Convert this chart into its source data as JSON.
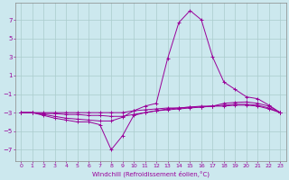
{
  "xlabel": "Windchill (Refroidissement éolien,°C)",
  "background_color": "#cce8ee",
  "grid_color": "#aacccc",
  "line_color": "#990099",
  "x_ticks": [
    0,
    1,
    2,
    3,
    4,
    5,
    6,
    7,
    8,
    9,
    10,
    11,
    12,
    13,
    14,
    15,
    16,
    17,
    18,
    19,
    20,
    21,
    22,
    23
  ],
  "y_ticks": [
    -7,
    -5,
    -3,
    -1,
    1,
    3,
    5,
    7
  ],
  "xlim": [
    -0.5,
    23.5
  ],
  "ylim": [
    -8.2,
    8.8
  ],
  "series": [
    {
      "x": [
        0,
        1,
        2,
        3,
        4,
        5,
        6,
        7,
        8,
        9,
        10,
        11,
        12,
        13,
        14,
        15,
        16,
        17,
        18,
        19,
        20,
        21,
        22,
        23
      ],
      "y": [
        -3.0,
        -3.0,
        -3.0,
        -3.0,
        -3.0,
        -3.0,
        -3.0,
        -3.0,
        -3.0,
        -3.0,
        -2.8,
        -2.7,
        -2.6,
        -2.5,
        -2.5,
        -2.4,
        -2.3,
        -2.3,
        -2.2,
        -2.1,
        -2.1,
        -2.2,
        -2.5,
        -3.0
      ]
    },
    {
      "x": [
        0,
        1,
        2,
        3,
        4,
        5,
        6,
        7,
        8,
        9,
        10,
        11,
        12,
        13,
        14,
        15,
        16,
        17,
        18,
        19,
        20,
        21,
        22,
        23
      ],
      "y": [
        -3.0,
        -3.0,
        -3.1,
        -3.1,
        -3.2,
        -3.2,
        -3.3,
        -3.3,
        -3.4,
        -3.4,
        -3.2,
        -3.0,
        -2.8,
        -2.7,
        -2.6,
        -2.5,
        -2.4,
        -2.3,
        -2.0,
        -1.9,
        -1.85,
        -2.0,
        -2.3,
        -3.0
      ]
    },
    {
      "x": [
        0,
        1,
        2,
        3,
        4,
        5,
        6,
        7,
        8,
        9,
        10,
        11,
        12,
        13,
        14,
        15,
        16,
        17,
        18,
        19,
        20,
        21,
        22,
        23
      ],
      "y": [
        -3.0,
        -3.0,
        -3.2,
        -3.4,
        -3.6,
        -3.7,
        -3.8,
        -3.9,
        -3.9,
        -3.5,
        -2.8,
        -2.3,
        -2.0,
        2.8,
        6.7,
        8.0,
        7.0,
        3.0,
        0.3,
        -0.5,
        -1.3,
        -1.5,
        -2.2,
        -3.0
      ]
    },
    {
      "x": [
        0,
        1,
        2,
        3,
        4,
        5,
        6,
        7,
        8,
        9,
        10,
        11,
        12,
        13,
        14,
        15,
        16,
        17,
        18,
        19,
        20,
        21,
        22,
        23
      ],
      "y": [
        -3.0,
        -3.0,
        -3.3,
        -3.6,
        -3.8,
        -4.0,
        -4.0,
        -4.3,
        -7.0,
        -5.5,
        -3.3,
        -3.0,
        -2.8,
        -2.6,
        -2.5,
        -2.4,
        -2.4,
        -2.3,
        -2.3,
        -2.2,
        -2.2,
        -2.3,
        -2.6,
        -3.0
      ]
    }
  ]
}
